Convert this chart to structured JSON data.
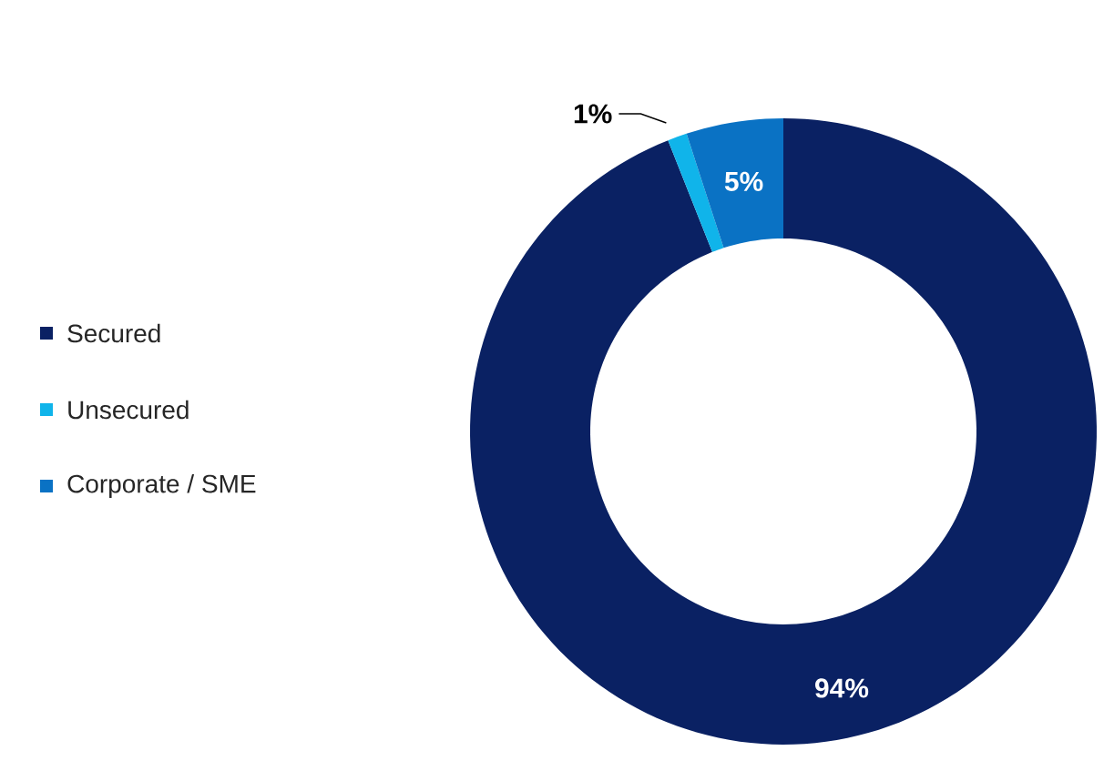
{
  "chart_data": {
    "type": "donut",
    "categories": [
      "Secured",
      "Unsecured",
      "Corporate / SME"
    ],
    "values": [
      94,
      1,
      5
    ],
    "colors": [
      "#0a2163",
      "#10b4ea",
      "#0a72c4"
    ],
    "value_labels": [
      "94%",
      "1%",
      "5%"
    ],
    "legend": "left"
  }
}
